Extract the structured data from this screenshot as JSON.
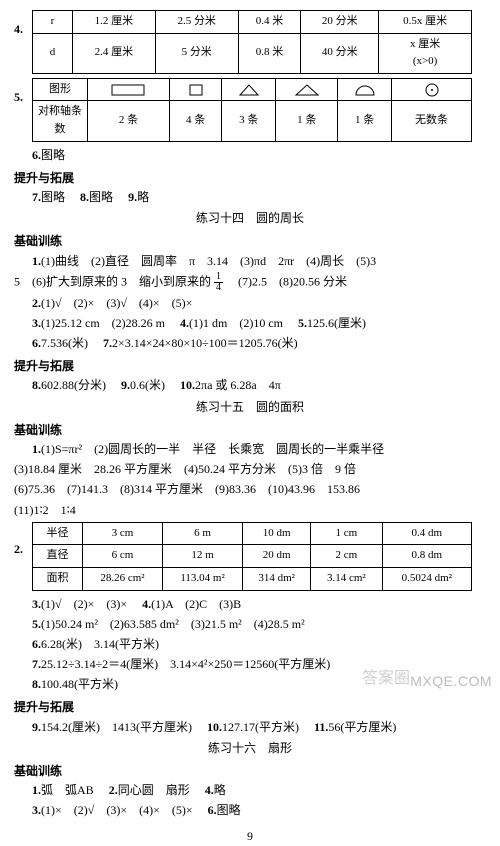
{
  "q4": {
    "num": "4.",
    "table": {
      "r": "r",
      "d": "d",
      "row1": [
        "1.2 厘米",
        "2.5 分米",
        "0.4 米",
        "20 分米",
        "0.5x 厘米"
      ],
      "row2": [
        "2.4 厘米",
        "5 分米",
        "0.8 米",
        "40 分米",
        "x 厘米\n(x>0)"
      ]
    }
  },
  "q5": {
    "num": "5.",
    "h1": "图形",
    "h2": "对称轴条数",
    "vals": [
      "2 条",
      "4 条",
      "3 条",
      "1 条",
      "1 条",
      "无数条"
    ]
  },
  "q6": {
    "num": "6.",
    "text": "图略"
  },
  "sectA": "提升与拓展",
  "q7": {
    "num": "7.",
    "text": "图略"
  },
  "q8a": {
    "num": "8.",
    "text": "图略"
  },
  "q9a": {
    "num": "9.",
    "text": "略"
  },
  "title14": "练习十四　圆的周长",
  "sectB": "基础训练",
  "p14_1": {
    "num": "1.",
    "a": "(1)曲线　(2)直径　圆周率　π　3.14　(3)πd　2πr　(4)周长　(5)3",
    "b": "5　(6)扩大到原来的 3　缩小到原来的",
    "frac_n": "1",
    "frac_d": "4",
    "c": "　(7)2.5　(8)20.56 分米"
  },
  "p14_2": {
    "num": "2.",
    "text": "(1)√　(2)×　(3)√　(4)×　(5)×"
  },
  "p14_3": {
    "num": "3.",
    "text": "(1)25.12 cm　(2)28.26 m"
  },
  "p14_4": {
    "num": "4.",
    "text": "(1)1 dm　(2)10 cm"
  },
  "p14_5": {
    "num": "5.",
    "text": "125.6(厘米)"
  },
  "p14_6": {
    "num": "6.",
    "text": "7.536(米)"
  },
  "p14_7": {
    "num": "7.",
    "text": "2×3.14×24×80×10÷100＝1205.76(米)"
  },
  "sectC": "提升与拓展",
  "p14_8": {
    "num": "8.",
    "text": "602.88(分米)"
  },
  "p14_9": {
    "num": "9.",
    "text": "0.6(米)"
  },
  "p14_10": {
    "num": "10.",
    "text": "2πa 或 6.28a　4π"
  },
  "title15": "练习十五　圆的面积",
  "sectD": "基础训练",
  "p15_1": {
    "num": "1.",
    "l1": "(1)S=πr²　(2)圆周长的一半　半径　长乘宽　圆周长的一半乘半径",
    "l2": "(3)18.84 厘米　28.26 平方厘米　(4)50.24 平方分米　(5)3 倍　9 倍",
    "l3": "(6)75.36　(7)141.3　(8)314 平方厘米　(9)83.36　(10)43.96　153.86",
    "l4": "(11)1∶2　1∶4"
  },
  "p15_2": {
    "num": "2.",
    "h": [
      "半径",
      "直径",
      "面积"
    ],
    "c": [
      [
        "3 cm",
        "6 m",
        "10 dm",
        "1 cm",
        "0.4 dm"
      ],
      [
        "6 cm",
        "12 m",
        "20 dm",
        "2 cm",
        "0.8 dm"
      ],
      [
        "28.26 cm²",
        "113.04 m²",
        "314 dm²",
        "3.14 cm²",
        "0.5024 dm²"
      ]
    ]
  },
  "p15_3": {
    "num": "3.",
    "text": "(1)√　(2)×　(3)×"
  },
  "p15_4": {
    "num": "4.",
    "text": "(1)A　(2)C　(3)B"
  },
  "p15_5": {
    "num": "5.",
    "text": "(1)50.24 m²　(2)63.585 dm²　(3)21.5 m²　(4)28.5 m²"
  },
  "p15_6": {
    "num": "6.",
    "text": "6.28(米)　3.14(平方米)"
  },
  "p15_7": {
    "num": "7.",
    "text": "25.12÷3.14÷2＝4(厘米)　3.14×4²×250＝12560(平方厘米)"
  },
  "p15_8": {
    "num": "8.",
    "text": "100.48(平方米)"
  },
  "sectE": "提升与拓展",
  "p15_9": {
    "num": "9.",
    "text": "154.2(厘米)　1413(平方厘米)"
  },
  "p15_10": {
    "num": "10.",
    "text": "127.17(平方米)"
  },
  "p15_11": {
    "num": "11.",
    "text": "56(平方厘米)"
  },
  "title16": "练习十六　扇形",
  "sectF": "基础训练",
  "p16_1": {
    "num": "1.",
    "text": "弧　弧AB"
  },
  "p16_1b": {
    "num": "2.",
    "text": "同心圆　扇形"
  },
  "p16_1c": {
    "num": "4.",
    "text": "略"
  },
  "p16_2": {
    "num": "3.",
    "text": "(1)×　(2)√　(3)×　(4)×　(5)×"
  },
  "p16_2b": {
    "num": "6.",
    "text": "图略"
  },
  "page": "9",
  "wm1": "答案圈",
  "wm2": "MXQE.COM"
}
